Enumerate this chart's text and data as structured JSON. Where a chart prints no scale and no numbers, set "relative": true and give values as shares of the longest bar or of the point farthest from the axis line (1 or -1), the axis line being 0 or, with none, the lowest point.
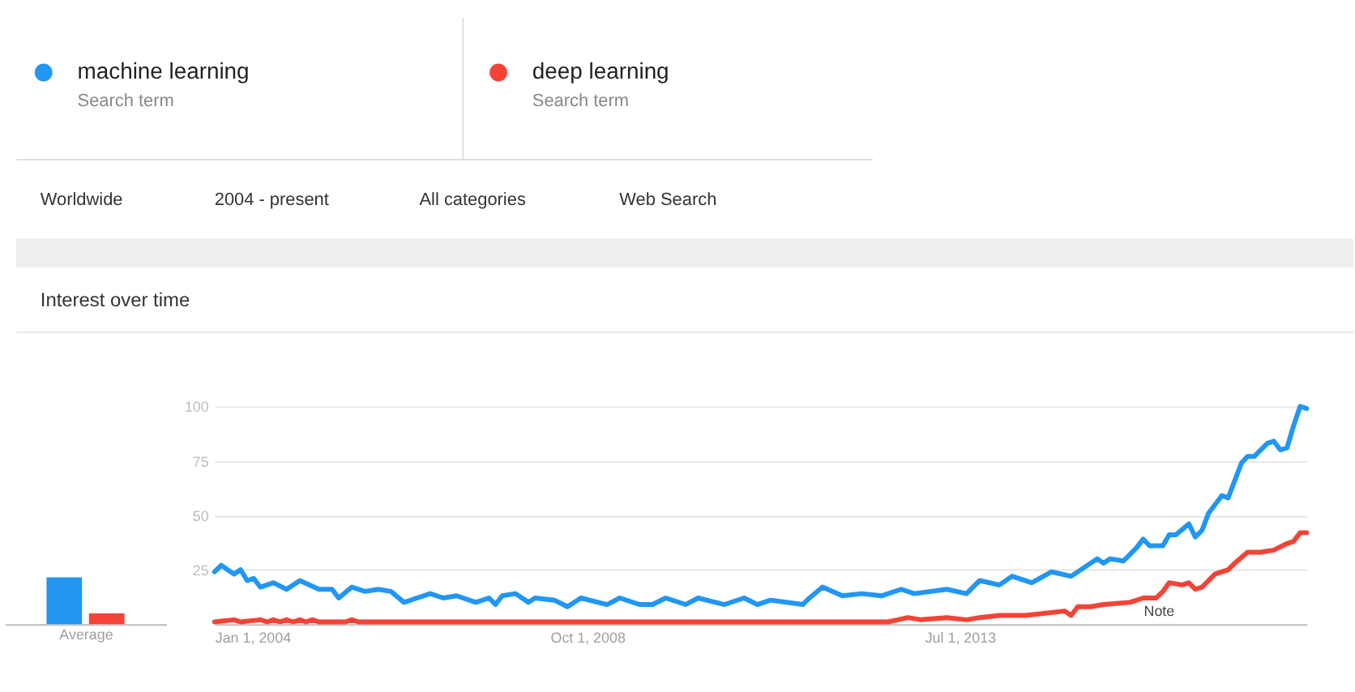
{
  "chart_data": [
    {
      "type": "line",
      "title": "Interest over time",
      "legend": "top left",
      "annotations": [
        "Search term",
        "Search term",
        "Worldwide",
        "2004 - present",
        "All categories",
        "Web Search",
        "Note"
      ],
      "xlim": [
        "2004-01",
        "2017-12"
      ],
      "xticks": [
        {
          "value": "2004-01-01",
          "label": "Jan 1, 2004"
        },
        {
          "value": "2008-10-01",
          "label": "Oct 1, 2008"
        },
        {
          "value": "2013-07-01",
          "label": "Jul 1, 2013"
        }
      ],
      "ylim": [
        0,
        100
      ],
      "yticks": [
        25,
        50,
        75,
        100
      ],
      "grid": "y",
      "series": [
        {
          "name": "machine learning",
          "color": "#2196f3",
          "x": [
            "2004-01",
            "2004-02",
            "2004-03",
            "2004-04",
            "2004-05",
            "2004-06",
            "2004-07",
            "2004-08",
            "2004-10",
            "2004-12",
            "2005-02",
            "2005-05",
            "2005-07",
            "2005-08",
            "2005-10",
            "2005-12",
            "2006-02",
            "2006-04",
            "2006-06",
            "2006-10",
            "2006-12",
            "2007-02",
            "2007-05",
            "2007-07",
            "2007-08",
            "2007-09",
            "2007-11",
            "2008-01",
            "2008-02",
            "2008-05",
            "2008-07",
            "2008-09",
            "2009-01",
            "2009-03",
            "2009-06",
            "2009-08",
            "2009-10",
            "2010-01",
            "2010-03",
            "2010-07",
            "2010-10",
            "2010-12",
            "2011-02",
            "2011-07",
            "2011-08",
            "2011-10",
            "2012-01",
            "2012-04",
            "2012-07",
            "2012-10",
            "2012-12",
            "2013-05",
            "2013-08",
            "2013-10",
            "2014-01",
            "2014-03",
            "2014-06",
            "2014-09",
            "2014-12",
            "2015-04",
            "2015-05",
            "2015-06",
            "2015-08",
            "2015-10",
            "2015-11",
            "2015-12",
            "2016-02",
            "2016-03",
            "2016-04",
            "2016-06",
            "2016-07",
            "2016-08",
            "2016-09",
            "2016-11",
            "2016-12",
            "2017-02",
            "2017-03",
            "2017-04",
            "2017-06",
            "2017-07",
            "2017-08",
            "2017-09",
            "2017-10",
            "2017-11",
            "2017-12"
          ],
          "values": [
            24,
            27,
            25,
            23,
            25,
            20,
            21,
            17,
            19,
            16,
            20,
            16,
            16,
            12,
            17,
            15,
            16,
            15,
            10,
            14,
            12,
            13,
            10,
            12,
            9,
            13,
            14,
            10,
            12,
            11,
            8,
            12,
            9,
            12,
            9,
            9,
            12,
            9,
            12,
            9,
            12,
            9,
            11,
            9,
            12,
            17,
            13,
            14,
            13,
            16,
            14,
            16,
            14,
            20,
            18,
            22,
            19,
            24,
            22,
            30,
            28,
            30,
            29,
            35,
            39,
            36,
            36,
            41,
            41,
            46,
            40,
            43,
            51,
            59,
            58,
            74,
            77,
            77,
            83,
            84,
            80,
            81,
            91,
            100,
            99
          ]
        },
        {
          "name": "deep learning",
          "color": "#f44336",
          "x": [
            "2004-01",
            "2004-04",
            "2004-05",
            "2004-08",
            "2004-09",
            "2004-10",
            "2004-11",
            "2004-12",
            "2005-01",
            "2005-02",
            "2005-03",
            "2005-04",
            "2005-05",
            "2005-09",
            "2005-10",
            "2005-11",
            "2012-08",
            "2012-11",
            "2013-01",
            "2013-05",
            "2013-08",
            "2013-10",
            "2014-01",
            "2014-05",
            "2014-11",
            "2014-12",
            "2015-01",
            "2015-03",
            "2015-05",
            "2015-09",
            "2015-11",
            "2016-01",
            "2016-02",
            "2016-03",
            "2016-05",
            "2016-06",
            "2016-07",
            "2016-08",
            "2016-10",
            "2016-12",
            "2017-01",
            "2017-03",
            "2017-05",
            "2017-07",
            "2017-09",
            "2017-10",
            "2017-11",
            "2017-12"
          ],
          "values": [
            1,
            2,
            1,
            2,
            1,
            2,
            1,
            2,
            1,
            2,
            1,
            2,
            1,
            1,
            2,
            1,
            1,
            3,
            2,
            3,
            2,
            3,
            4,
            4,
            6,
            4,
            8,
            8,
            9,
            10,
            12,
            12,
            15,
            19,
            18,
            19,
            16,
            17,
            23,
            25,
            28,
            33,
            33,
            34,
            37,
            38,
            42,
            42
          ]
        }
      ]
    },
    {
      "type": "bar",
      "relative": true,
      "xlabel": "Average",
      "categories": [
        null,
        null
      ],
      "values": [
        1,
        0.23
      ],
      "colors": [
        "#2196f3",
        "#f44336"
      ]
    }
  ]
}
